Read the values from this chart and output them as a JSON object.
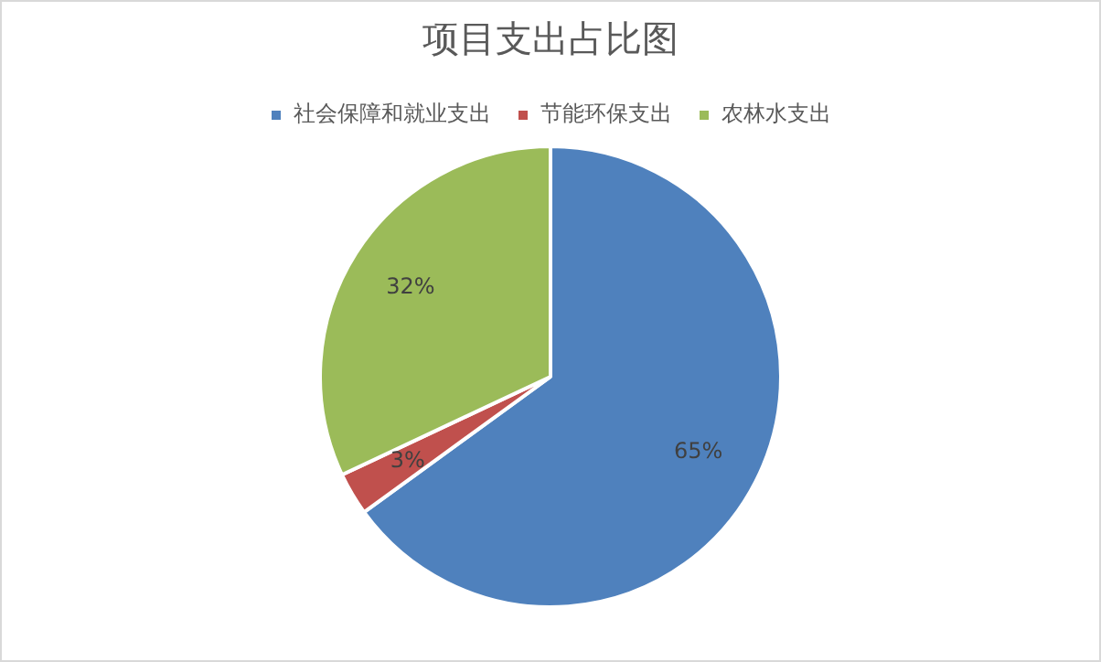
{
  "chart_data": {
    "type": "pie",
    "title": "项目支出占比图",
    "categories": [
      "社会保障和就业支出",
      "节能环保支出",
      "农林水支出"
    ],
    "values": [
      65,
      3,
      32
    ],
    "colors": [
      "#4f81bd",
      "#c0504d",
      "#9bbb59"
    ],
    "value_labels": [
      "65%",
      "3%",
      "32%"
    ],
    "legend": "top"
  }
}
